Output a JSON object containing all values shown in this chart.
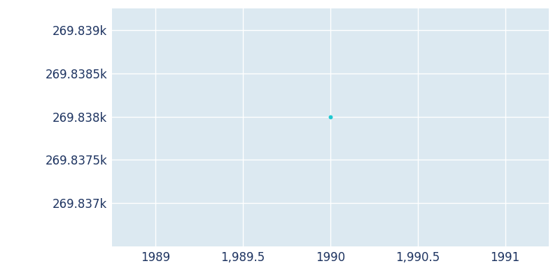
{
  "x_data": [
    1990
  ],
  "y_data": [
    269838
  ],
  "xlim": [
    1988.75,
    1991.25
  ],
  "ylim": [
    269836.5,
    269839.25
  ],
  "yticks": [
    269837.0,
    269837.5,
    269838.0,
    269838.5,
    269839.0
  ],
  "ytick_labels": [
    "269.837k",
    "269.8375k",
    "269.838k",
    "269.8385k",
    "269.839k"
  ],
  "xticks": [
    1989,
    1989.5,
    1990,
    1990.5,
    1991
  ],
  "xtick_labels": [
    "1989",
    "1,989.5",
    "1990",
    "1,990.5",
    "1991"
  ],
  "point_color": "#20c8d0",
  "point_size": 18,
  "background_color": "#ffffff",
  "plot_bg_color": "#dce9f1",
  "grid_color": "#ffffff",
  "text_color": "#1e3461",
  "tick_fontsize": 12
}
